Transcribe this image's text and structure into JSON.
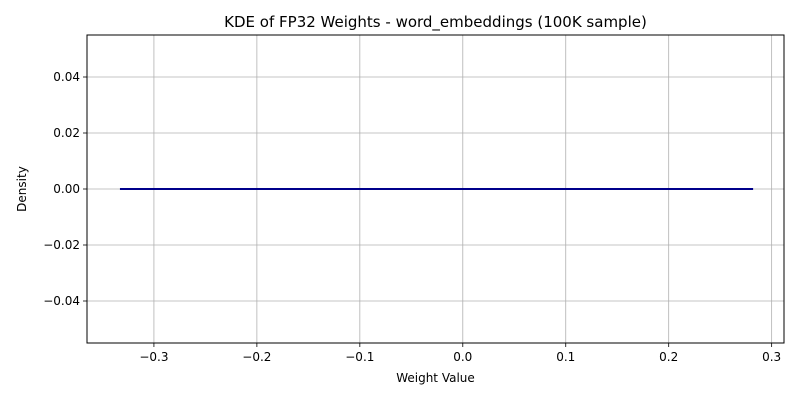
{
  "chart_data": {
    "type": "line",
    "title": "KDE of FP32 Weights - word_embeddings (100K sample)",
    "xlabel": "Weight Value",
    "ylabel": "Density",
    "xlim": [
      -0.365,
      0.312
    ],
    "ylim": [
      -0.055,
      0.055
    ],
    "xticks": [
      -0.3,
      -0.2,
      -0.1,
      0.0,
      0.1,
      0.2,
      0.3
    ],
    "xtick_labels": [
      "−0.3",
      "−0.2",
      "−0.1",
      "0.0",
      "0.1",
      "0.2",
      "0.3"
    ],
    "yticks": [
      -0.04,
      -0.02,
      0.0,
      0.02,
      0.04
    ],
    "ytick_labels": [
      "−0.04",
      "−0.02",
      "0.00",
      "0.02",
      "0.04"
    ],
    "grid": true,
    "series": [
      {
        "color": "#00008b",
        "x": [
          -0.333,
          0.282
        ],
        "y": [
          0.0,
          0.0
        ]
      }
    ]
  }
}
